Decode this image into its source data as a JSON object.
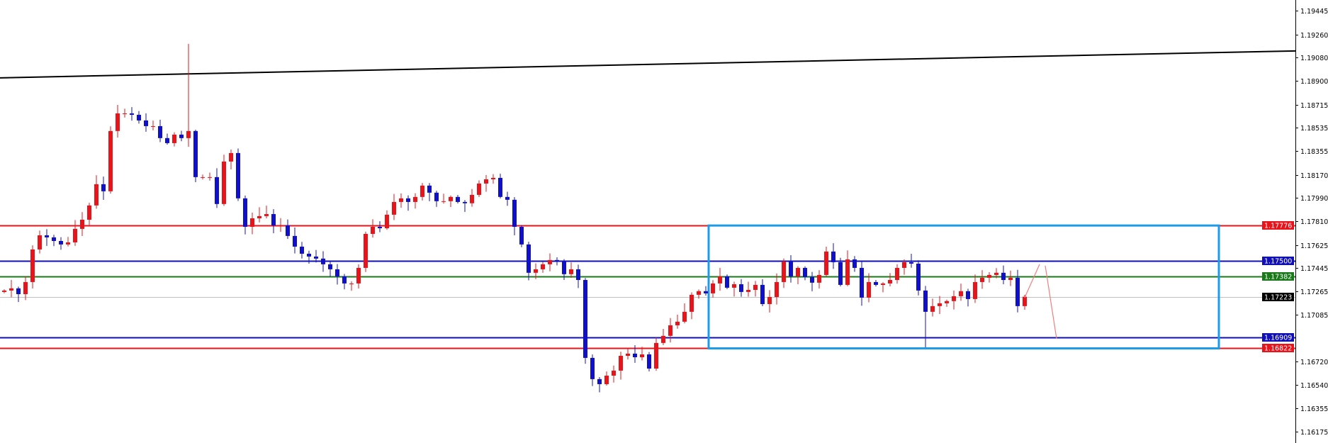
{
  "chart_data": {
    "type": "candlestick",
    "title": "",
    "xlabel": "",
    "ylabel": "",
    "ylim": [
      1.16075,
      1.19713
    ],
    "grid": false,
    "colors": {
      "bull": "#e8141c",
      "bear": "#1010c8",
      "background": "#ffffff",
      "axis": "#000000"
    },
    "y_ticks": [
      "1.19445",
      "1.19260",
      "1.19080",
      "1.18900",
      "1.18715",
      "1.18535",
      "1.18355",
      "1.18170",
      "1.17990",
      "1.17810",
      "1.17625",
      "1.17445",
      "1.17265",
      "1.17085",
      "1.16720",
      "1.16540",
      "1.16355",
      "1.16175"
    ],
    "first_open": 1.1726,
    "closes": [
      1.17271,
      1.17288,
      1.17243,
      1.17337,
      1.1759,
      1.177,
      1.17684,
      1.17656,
      1.17629,
      1.17645,
      1.1775,
      1.17821,
      1.17932,
      1.18097,
      1.18042,
      1.1851,
      1.18647,
      1.18647,
      1.18636,
      1.18592,
      1.18548,
      1.18548,
      1.18455,
      1.18416,
      1.18482,
      1.18455,
      1.1851,
      1.18152,
      1.18152,
      1.18152,
      1.17943,
      1.18273,
      1.18339,
      1.17987,
      1.17766,
      1.17832,
      1.17849,
      1.17865,
      1.17777,
      1.17777,
      1.17695,
      1.17612,
      1.17557,
      1.17535,
      1.17519,
      1.17475,
      1.17436,
      1.17381,
      1.17326,
      1.17326,
      1.17447,
      1.17711,
      1.17766,
      1.17755,
      1.1786,
      1.17959,
      1.17987,
      1.17959,
      1.17998,
      1.18086,
      1.18031,
      1.17965,
      1.17965,
      1.17998,
      1.17959,
      1.17949,
      1.18014,
      1.18102,
      1.18135,
      1.18146,
      1.17998,
      1.17976,
      1.17766,
      1.17629,
      1.17409,
      1.17436,
      1.17475,
      1.17508,
      1.17502,
      1.17398,
      1.17436,
      1.17353,
      1.16748,
      1.16583,
      1.16544,
      1.1661,
      1.16649,
      1.16764,
      1.16781,
      1.16753,
      1.16775,
      1.16665,
      1.16864,
      1.16919,
      1.17001,
      1.17029,
      1.17106,
      1.17238,
      1.17266,
      1.17249,
      1.17326,
      1.17381,
      1.17293,
      1.1732,
      1.1726,
      1.17276,
      1.17315,
      1.17166,
      1.17221,
      1.17337,
      1.17497,
      1.17381,
      1.17447,
      1.17376,
      1.17332,
      1.17392,
      1.17574,
      1.17491,
      1.17315,
      1.17513,
      1.17447,
      1.17216,
      1.17337,
      1.17315,
      1.17326,
      1.17353,
      1.17447,
      1.17491,
      1.1748,
      1.17271,
      1.17106,
      1.1715,
      1.17172,
      1.17189,
      1.17227,
      1.17266,
      1.17205,
      1.17337,
      1.1737,
      1.17392,
      1.17409,
      1.17353,
      1.1737,
      1.1715,
      1.17223
    ],
    "extremes": [
      {
        "index": 26,
        "high": 1.19187
      },
      {
        "index": 130,
        "low": 1.1683
      }
    ],
    "levels": [
      {
        "price": "1.17776",
        "color": "#e8141c"
      },
      {
        "price": "1.17500",
        "color": "#1010b4"
      },
      {
        "price": "1.17382",
        "color": "#1a7a1a"
      },
      {
        "price": "1.17223",
        "color": "#000000",
        "line_color": "#c0c0c0"
      },
      {
        "price": "1.16909",
        "color": "#1010b4"
      },
      {
        "price": "1.16822",
        "color": "#e8141c"
      }
    ],
    "range_box": {
      "from_bar": 99.4,
      "to_bar": 171.4,
      "top": 1.17776,
      "bottom": 1.16822,
      "color": "#1e9be8"
    },
    "trendline": {
      "from": {
        "bar": -0.6,
        "price": 1.18923
      },
      "to": {
        "bar": 182.2,
        "price": 1.19132
      },
      "color": "#000000"
    },
    "projection": {
      "color": "#f08080",
      "points": [
        {
          "bar": 144,
          "price": 1.17216
        },
        {
          "bar": 146.1,
          "price": 1.17475
        },
        {
          "bar": 146.9,
          "price": 1.17464
        },
        {
          "bar": 148.5,
          "price": 1.16897
        }
      ]
    }
  }
}
